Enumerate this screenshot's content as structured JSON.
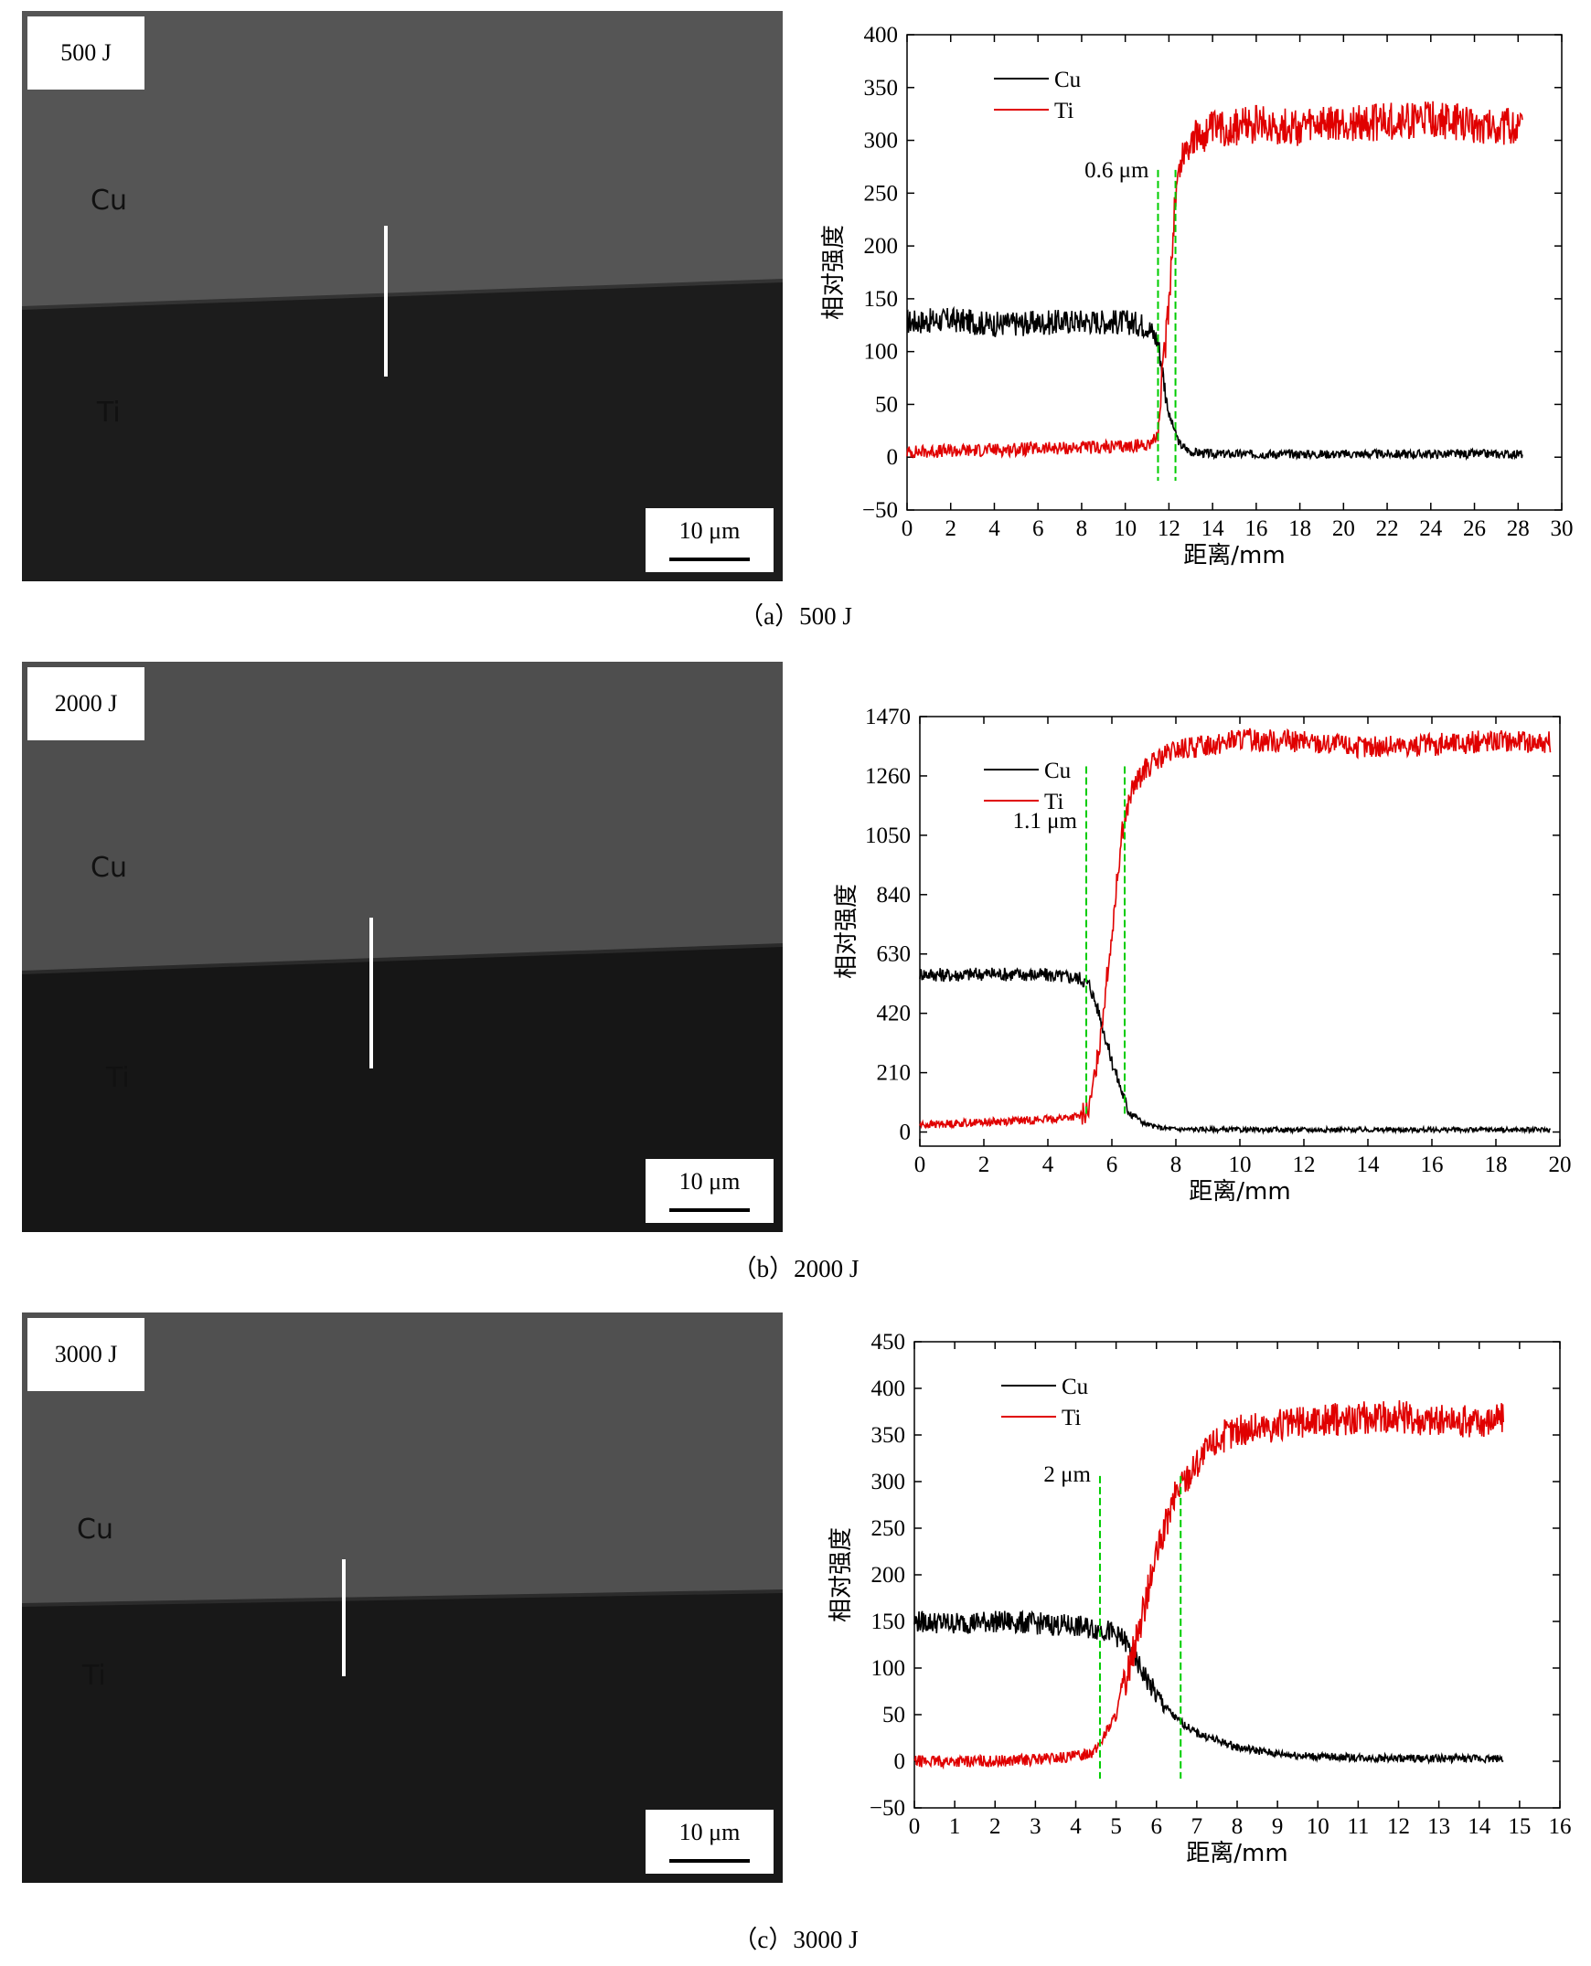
{
  "panels": [
    {
      "energy": "500 J",
      "region_top": "Cu",
      "region_bottom": "Ti",
      "scale": "10 μm",
      "caption": "（a）500 J",
      "width_label": "0.6 μm"
    },
    {
      "energy": "2000 J",
      "region_top": "Cu",
      "region_bottom": "Ti",
      "scale": "10 μm",
      "caption": "（b）2000 J",
      "width_label": "1.1 μm"
    },
    {
      "energy": "3000 J",
      "region_top": "Cu",
      "region_bottom": "Ti",
      "scale": "10 μm",
      "caption": "（c）3000 J",
      "width_label": "2 μm"
    }
  ],
  "colors": {
    "cu": "#000000",
    "ti": "#e00000",
    "marker": "#00cc00"
  },
  "chart_data": [
    {
      "type": "line",
      "xlabel": "距离/mm",
      "ylabel": "相对强度",
      "xlim": [
        0,
        30
      ],
      "ylim": [
        -50,
        400
      ],
      "xticks": [
        0,
        2,
        4,
        6,
        8,
        10,
        12,
        14,
        16,
        18,
        20,
        22,
        24,
        26,
        28,
        30
      ],
      "yticks": [
        -50,
        0,
        50,
        100,
        150,
        200,
        250,
        300,
        350,
        400
      ],
      "legend": "top-left",
      "series": [
        {
          "name": "Cu",
          "x": [
            0,
            2,
            4,
            6,
            8,
            10,
            11,
            11.5,
            12,
            12.5,
            13,
            14,
            16,
            20,
            24,
            28.2
          ],
          "y": [
            128,
            130,
            126,
            127,
            129,
            128,
            125,
            110,
            40,
            12,
            5,
            3,
            3,
            3,
            3,
            3
          ]
        },
        {
          "name": "Ti",
          "x": [
            0,
            2,
            4,
            6,
            8,
            10,
            11,
            11.5,
            12,
            12.3,
            12.6,
            13,
            14,
            16,
            18,
            20,
            22,
            24,
            26,
            28.2
          ],
          "y": [
            5,
            6,
            7,
            8,
            9,
            10,
            12,
            20,
            150,
            250,
            285,
            300,
            310,
            315,
            312,
            315,
            318,
            320,
            315,
            312
          ]
        }
      ],
      "markers": [
        11.5,
        12.3
      ],
      "noise": {
        "Cu": 12,
        "Ti": 18
      }
    },
    {
      "type": "line",
      "xlabel": "距离/mm",
      "ylabel": "相对强度",
      "xlim": [
        0,
        20
      ],
      "ylim": [
        -50,
        1470
      ],
      "xticks": [
        0,
        2,
        4,
        6,
        8,
        10,
        12,
        14,
        16,
        18,
        20
      ],
      "yticks": [
        0,
        210,
        420,
        630,
        840,
        1050,
        1260,
        1470
      ],
      "legend": "top-left",
      "series": [
        {
          "name": "Cu",
          "x": [
            0,
            1,
            2,
            3,
            4,
            5,
            5.3,
            5.6,
            6,
            6.5,
            7,
            7.5,
            8,
            10,
            14,
            19.7
          ],
          "y": [
            560,
            555,
            560,
            558,
            555,
            545,
            520,
            420,
            250,
            80,
            30,
            15,
            10,
            8,
            8,
            8
          ]
        },
        {
          "name": "Ti",
          "x": [
            0,
            1,
            2,
            3,
            4,
            5,
            5.3,
            5.6,
            6,
            6.3,
            6.6,
            7,
            7.5,
            8,
            10,
            12,
            14,
            16,
            18,
            19.7
          ],
          "y": [
            25,
            30,
            35,
            40,
            45,
            55,
            80,
            300,
            700,
            1050,
            1200,
            1280,
            1320,
            1350,
            1390,
            1380,
            1360,
            1370,
            1385,
            1380
          ]
        }
      ],
      "markers": [
        5.2,
        6.4
      ],
      "noise": {
        "Cu": 25,
        "Ti": 40
      }
    },
    {
      "type": "line",
      "xlabel": "距离/mm",
      "ylabel": "相对强度",
      "xlim": [
        0,
        16
      ],
      "ylim": [
        -50,
        450
      ],
      "xticks": [
        0,
        1,
        2,
        3,
        4,
        5,
        6,
        7,
        8,
        9,
        10,
        11,
        12,
        13,
        14,
        15,
        16
      ],
      "yticks": [
        -50,
        0,
        50,
        100,
        150,
        200,
        250,
        300,
        350,
        400,
        450
      ],
      "legend": "top-left",
      "series": [
        {
          "name": "Cu",
          "x": [
            0,
            1,
            2,
            3,
            4,
            4.8,
            5.2,
            5.6,
            6,
            6.5,
            7,
            8,
            9,
            10,
            12,
            14.6
          ],
          "y": [
            150,
            148,
            150,
            148,
            145,
            140,
            130,
            100,
            70,
            45,
            30,
            15,
            8,
            5,
            3,
            3
          ]
        },
        {
          "name": "Ti",
          "x": [
            0,
            1,
            2,
            3,
            4,
            4.5,
            5,
            5.5,
            6,
            6.5,
            7,
            7.5,
            8,
            9,
            10,
            11,
            12,
            13,
            14,
            14.6
          ],
          "y": [
            0,
            0,
            0,
            2,
            5,
            12,
            50,
            130,
            220,
            290,
            320,
            345,
            355,
            360,
            365,
            368,
            370,
            365,
            365,
            368
          ]
        }
      ],
      "markers": [
        4.6,
        6.6
      ],
      "noise": {
        "Cu": 12,
        "Ti": 18
      }
    }
  ]
}
